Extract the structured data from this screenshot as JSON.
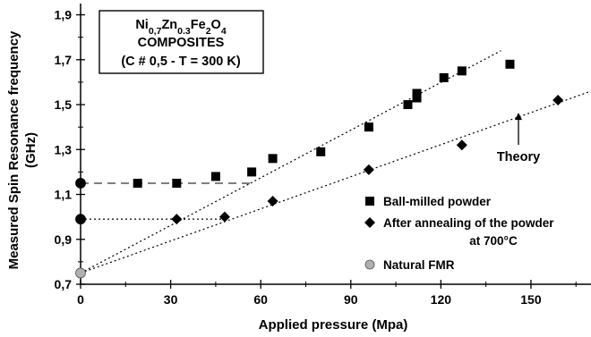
{
  "chart_data": {
    "type": "scatter",
    "xlabel": "Applied pressure (Mpa)",
    "ylabel_line1": "Measured Spin Resonance frequency",
    "ylabel_line2": "(GHz)",
    "xlim": [
      0,
      170
    ],
    "ylim": [
      0.7,
      1.95
    ],
    "x_ticks": [
      0,
      30,
      60,
      90,
      120,
      150
    ],
    "x_tick_labels": [
      "0",
      "30",
      "60",
      "90",
      "120",
      "150"
    ],
    "y_ticks": [
      0.7,
      0.9,
      1.1,
      1.3,
      1.5,
      1.7,
      1.9
    ],
    "y_tick_labels": [
      "0,7",
      "0,9",
      "1,1",
      "1,3",
      "1,5",
      "1,7",
      "1,9"
    ],
    "grid": false,
    "title_box": {
      "line1_parts": [
        {
          "text": "Ni",
          "sub": false
        },
        {
          "text": "0,7",
          "sub": true
        },
        {
          "text": "Zn",
          "sub": false
        },
        {
          "text": "0.3",
          "sub": true
        },
        {
          "text": "Fe",
          "sub": false
        },
        {
          "text": "2",
          "sub": true
        },
        {
          "text": "O",
          "sub": false
        },
        {
          "text": "4",
          "sub": true
        }
      ],
      "line2": "COMPOSITES",
      "line3": "(C # 0,5 - T = 300 K)"
    },
    "series": [
      {
        "name": "Ball-milled powder",
        "marker": "square",
        "color": "#000000",
        "x": [
          19,
          32,
          45,
          57,
          64,
          80,
          96,
          109,
          112,
          112,
          121,
          127,
          143
        ],
        "y": [
          1.15,
          1.15,
          1.18,
          1.2,
          1.26,
          1.29,
          1.4,
          1.5,
          1.53,
          1.55,
          1.62,
          1.65,
          1.68
        ]
      },
      {
        "name_line1": "After annealing of the powder",
        "name_line2": "at 700°C",
        "marker": "diamond",
        "color": "#000000",
        "x": [
          32,
          48,
          64,
          96,
          127,
          159
        ],
        "y": [
          0.99,
          1.0,
          1.07,
          1.21,
          1.32,
          1.52
        ]
      },
      {
        "name": "Natural FMR",
        "marker": "circle",
        "color": "#b0b0b0",
        "x": [
          0
        ],
        "y": [
          0.75
        ]
      }
    ],
    "intercept_points": {
      "marker": "circle",
      "color": "#000000",
      "x": [
        0,
        0
      ],
      "y": [
        1.15,
        0.99
      ]
    },
    "reference_lines": [
      {
        "style": "dashed",
        "from": [
          0,
          1.15
        ],
        "to": [
          57,
          1.15
        ]
      },
      {
        "style": "dotted",
        "from": [
          0,
          0.99
        ],
        "to": [
          48,
          0.99
        ]
      },
      {
        "style": "dotted",
        "from": [
          0,
          0.75
        ],
        "to": [
          140,
          1.74
        ]
      },
      {
        "style": "dotted",
        "from": [
          0,
          0.75
        ],
        "to": [
          170,
          1.56
        ]
      }
    ],
    "annotation": {
      "text": "Theory",
      "arrow_to": [
        130,
        1.48
      ]
    }
  }
}
